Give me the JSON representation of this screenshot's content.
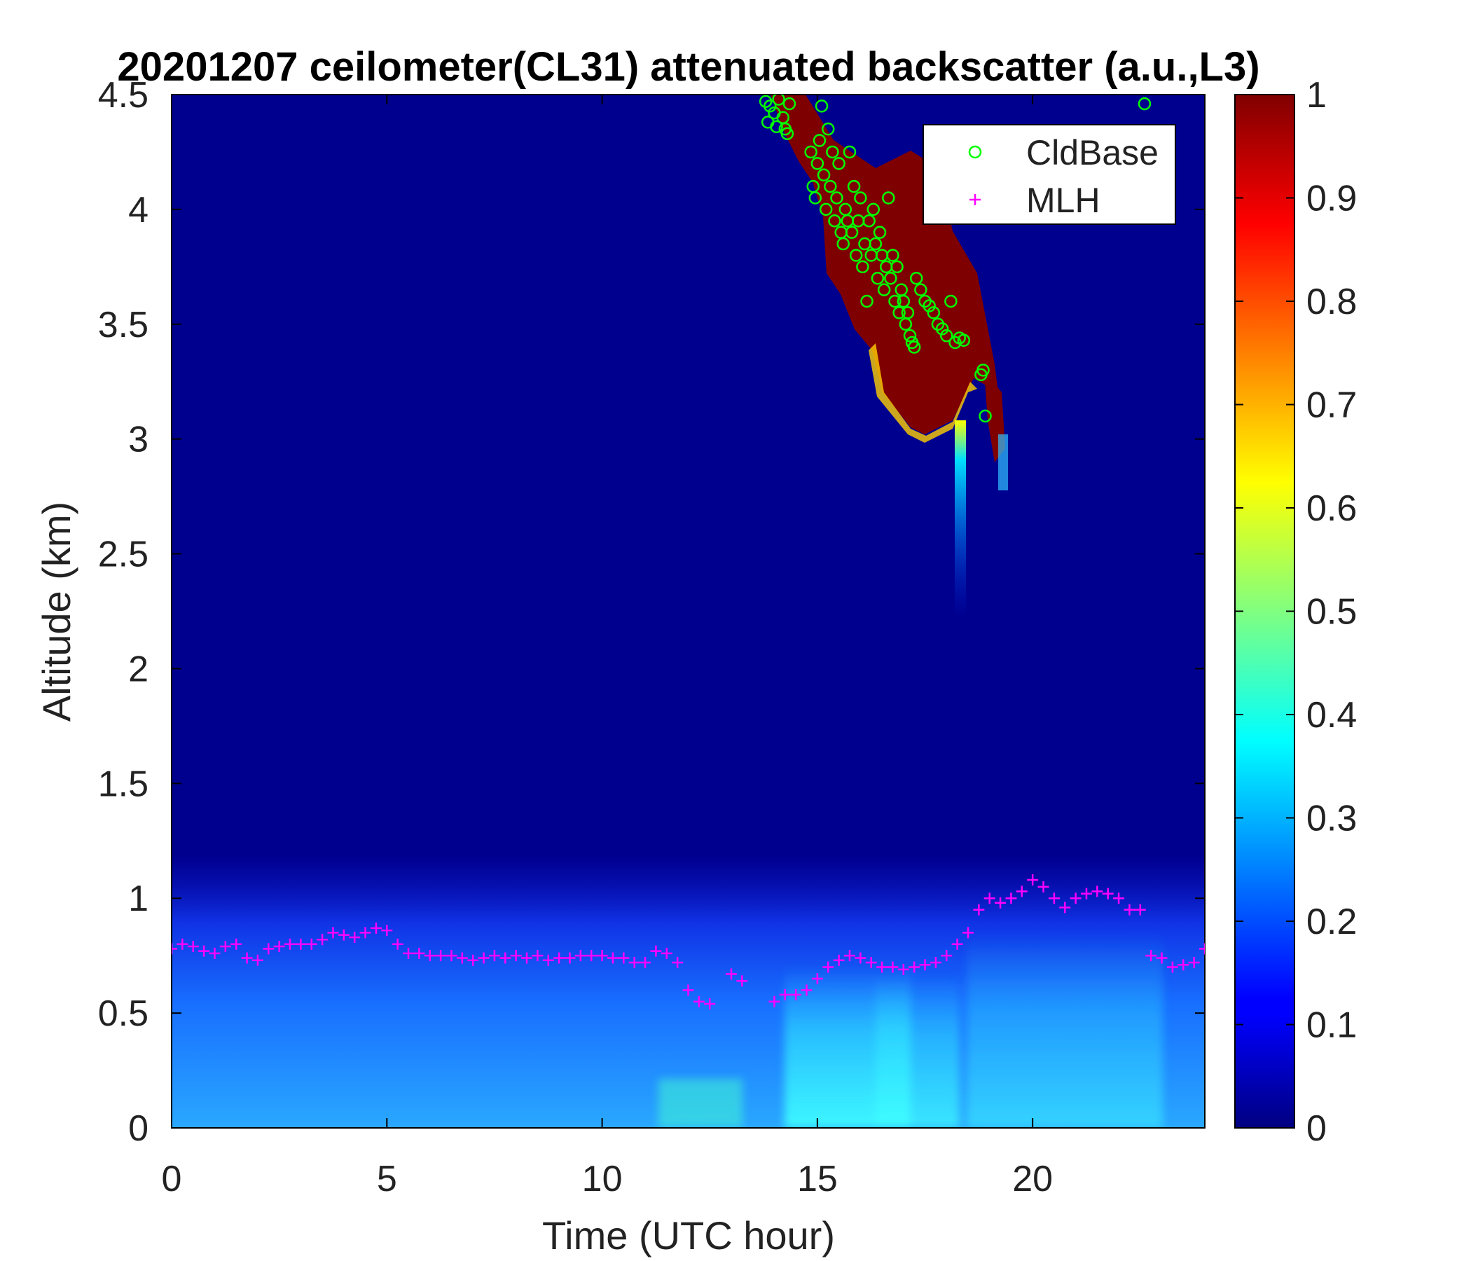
{
  "chart_data": {
    "type": "heatmap",
    "title": "20201207 ceilometer(CL31) attenuated backscatter (a.u.,L3)",
    "xlabel": "Time (UTC hour)",
    "ylabel": "Altitude (km)",
    "xlim": [
      0,
      24
    ],
    "ylim": [
      0,
      4.5
    ],
    "xticks": [
      0,
      5,
      10,
      15,
      20
    ],
    "yticks": [
      0,
      0.5,
      1,
      1.5,
      2,
      2.5,
      3,
      3.5,
      4,
      4.5
    ],
    "colorbar": {
      "colormap": "jet",
      "clim": [
        0,
        1
      ],
      "ticks": [
        0,
        0.1,
        0.2,
        0.3,
        0.4,
        0.5,
        0.6,
        0.7,
        0.8,
        0.9,
        1
      ]
    },
    "legend": {
      "placement": "top-right",
      "entries": [
        "CldBase",
        "MLH"
      ]
    },
    "series": [
      {
        "name": "CldBase",
        "marker": "circle",
        "color": "#00ff00",
        "x": [
          13.8,
          13.85,
          13.9,
          14.0,
          14.05,
          14.1,
          14.2,
          14.25,
          14.3,
          14.35,
          14.85,
          14.9,
          14.95,
          15.0,
          15.05,
          15.1,
          15.15,
          15.2,
          15.25,
          15.3,
          15.35,
          15.4,
          15.45,
          15.5,
          15.55,
          15.6,
          15.65,
          15.7,
          15.75,
          15.8,
          15.85,
          15.9,
          15.95,
          16.0,
          16.05,
          16.1,
          16.15,
          16.2,
          16.25,
          16.3,
          16.35,
          16.4,
          16.45,
          16.5,
          16.55,
          16.6,
          16.65,
          16.7,
          16.75,
          16.8,
          16.85,
          16.9,
          16.95,
          17.0,
          17.05,
          17.1,
          17.15,
          17.2,
          17.25,
          17.3,
          17.4,
          17.5,
          17.6,
          17.7,
          17.8,
          17.9,
          18.0,
          18.1,
          18.2,
          18.3,
          18.4,
          18.8,
          18.85,
          18.9,
          22.6
        ],
        "y": [
          4.47,
          4.38,
          4.45,
          4.42,
          4.36,
          4.48,
          4.4,
          4.35,
          4.33,
          4.46,
          4.25,
          4.1,
          4.05,
          4.2,
          4.3,
          4.45,
          4.15,
          4.0,
          4.35,
          4.1,
          4.25,
          3.95,
          4.05,
          4.2,
          3.9,
          3.85,
          4.0,
          3.95,
          4.25,
          3.9,
          4.1,
          3.8,
          3.95,
          4.05,
          3.75,
          3.85,
          3.6,
          3.95,
          3.8,
          4.0,
          3.85,
          3.7,
          3.9,
          3.8,
          3.65,
          3.75,
          4.05,
          3.7,
          3.8,
          3.6,
          3.75,
          3.55,
          3.65,
          3.6,
          3.5,
          3.55,
          3.45,
          3.42,
          3.4,
          3.7,
          3.65,
          3.6,
          3.58,
          3.55,
          3.5,
          3.48,
          3.45,
          3.6,
          3.42,
          3.44,
          3.43,
          3.28,
          3.3,
          3.1,
          4.46
        ]
      },
      {
        "name": "MLH",
        "marker": "plus",
        "color": "#ff00ff",
        "x": [
          0.0,
          0.25,
          0.5,
          0.75,
          1.0,
          1.25,
          1.5,
          1.75,
          2.0,
          2.25,
          2.5,
          2.75,
          3.0,
          3.25,
          3.5,
          3.75,
          4.0,
          4.25,
          4.5,
          4.75,
          5.0,
          5.25,
          5.5,
          5.75,
          6.0,
          6.25,
          6.5,
          6.75,
          7.0,
          7.25,
          7.5,
          7.75,
          8.0,
          8.25,
          8.5,
          8.75,
          9.0,
          9.25,
          9.5,
          9.75,
          10.0,
          10.25,
          10.5,
          10.75,
          11.0,
          11.25,
          11.5,
          11.75,
          12.0,
          12.25,
          12.5,
          13.0,
          13.25,
          14.0,
          14.25,
          14.5,
          14.75,
          15.0,
          15.25,
          15.5,
          15.75,
          16.0,
          16.25,
          16.5,
          16.75,
          17.0,
          17.25,
          17.5,
          17.75,
          18.0,
          18.25,
          18.5,
          18.75,
          19.0,
          19.25,
          19.5,
          19.75,
          20.0,
          20.25,
          20.5,
          20.75,
          21.0,
          21.25,
          21.5,
          21.75,
          22.0,
          22.25,
          22.5,
          22.75,
          23.0,
          23.25,
          23.5,
          23.75,
          24.0
        ],
        "y": [
          0.78,
          0.8,
          0.79,
          0.77,
          0.76,
          0.79,
          0.8,
          0.74,
          0.73,
          0.78,
          0.79,
          0.8,
          0.8,
          0.8,
          0.82,
          0.85,
          0.84,
          0.83,
          0.85,
          0.87,
          0.86,
          0.8,
          0.76,
          0.76,
          0.75,
          0.75,
          0.75,
          0.74,
          0.73,
          0.74,
          0.75,
          0.74,
          0.75,
          0.74,
          0.75,
          0.73,
          0.74,
          0.74,
          0.75,
          0.75,
          0.75,
          0.74,
          0.74,
          0.72,
          0.72,
          0.77,
          0.76,
          0.72,
          0.6,
          0.55,
          0.54,
          0.67,
          0.64,
          0.55,
          0.58,
          0.58,
          0.6,
          0.65,
          0.7,
          0.73,
          0.75,
          0.74,
          0.72,
          0.7,
          0.7,
          0.69,
          0.7,
          0.71,
          0.72,
          0.75,
          0.8,
          0.85,
          0.95,
          1.0,
          0.98,
          1.0,
          1.03,
          1.08,
          1.05,
          1.0,
          0.96,
          1.0,
          1.02,
          1.03,
          1.02,
          1.0,
          0.95,
          0.95,
          0.75,
          0.74,
          0.7,
          0.71,
          0.72,
          0.78
        ]
      }
    ]
  }
}
